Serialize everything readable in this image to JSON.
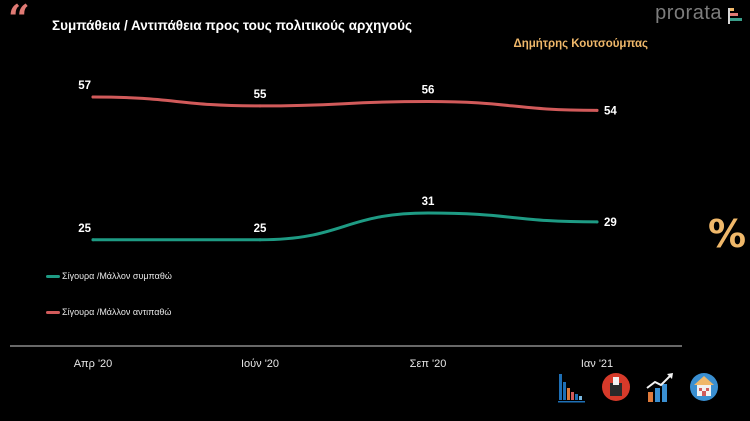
{
  "header": {
    "quote_glyph": "“",
    "title": "Συμπάθεια / Αντιπάθεια προς τους πολιτικούς αρχηγούς",
    "subtitle": "Δημήτρης Κουτσούμπας",
    "brand": "prorata"
  },
  "colors": {
    "green": "#1e9b84",
    "red": "#d15a5a",
    "accent": "#f0b86a"
  },
  "chart_data": {
    "type": "line",
    "categories": [
      "Απρ '20",
      "Ιούν '20",
      "Σεπ '20",
      "Ιαν '21"
    ],
    "series": [
      {
        "name": "Σίγουρα /Μάλλον συμπαθώ",
        "values": [
          25,
          25,
          31,
          29
        ],
        "color": "#1e9b84"
      },
      {
        "name": "Σίγουρα /Μάλλον αντιπαθώ",
        "values": [
          57,
          55,
          56,
          54
        ],
        "color": "#d15a5a"
      }
    ],
    "ylim": [
      0,
      80
    ],
    "grid": false,
    "legend": "left"
  },
  "side_symbol": "%",
  "icons": [
    "bar-chart-icon",
    "ballot-box-icon",
    "growth-chart-icon",
    "house-icon"
  ]
}
